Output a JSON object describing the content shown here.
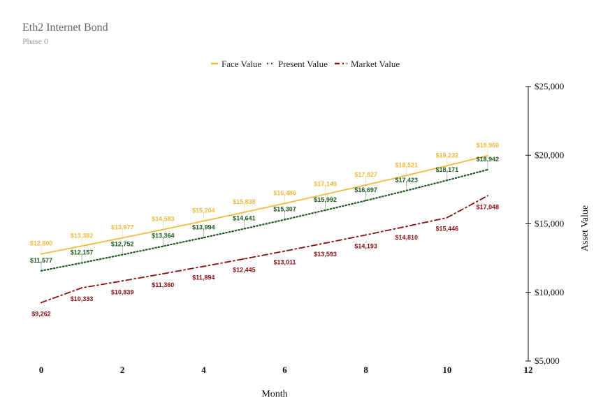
{
  "chart_data": {
    "type": "line",
    "title": "Eth2 Internet Bond",
    "subtitle": "Phase 0",
    "xlabel": "Month",
    "ylabel": "Asset Value",
    "xlim": [
      0,
      12
    ],
    "ylim": [
      5000,
      25000
    ],
    "x_ticks": [
      "0",
      "2",
      "4",
      "6",
      "8",
      "10",
      "12"
    ],
    "x_tick_values": [
      0,
      2,
      4,
      6,
      8,
      10,
      12
    ],
    "y_ticks": [
      "$5,000",
      "$10,000",
      "$15,000",
      "$20,000",
      "$25,000"
    ],
    "y_tick_values": [
      5000,
      10000,
      15000,
      20000,
      25000
    ],
    "y_axis_side": "right",
    "grid": false,
    "legend_position": "top-center",
    "x": [
      0,
      1,
      2,
      3,
      4,
      5,
      6,
      7,
      8,
      9,
      10,
      11
    ],
    "series": [
      {
        "name": "Face Value",
        "color": "#f0b93b",
        "line_style": "solid",
        "label_position": "above",
        "values": [
          12800,
          13382,
          13977,
          14583,
          15204,
          15838,
          16486,
          17149,
          17827,
          18521,
          19232,
          19960
        ],
        "labels": [
          "$12,800",
          "$13,382",
          "$13,977",
          "$14,583",
          "$15,204",
          "$15,838",
          "$16,486",
          "$17,149",
          "$17,827",
          "$18,521",
          "$19,232",
          "$19,960"
        ]
      },
      {
        "name": "Present Value",
        "color": "#1e5a1e",
        "line_style": "dotted",
        "label_position": "above",
        "values": [
          11577,
          12157,
          12752,
          13364,
          13994,
          14641,
          15307,
          15992,
          16697,
          17423,
          18171,
          18942
        ],
        "labels": [
          "$11,577",
          "$12,157",
          "$12,752",
          "$13,364",
          "$13,994",
          "$14,641",
          "$15,307",
          "$15,992",
          "$16,697",
          "$17,423",
          "$18,171",
          "$18,942"
        ]
      },
      {
        "name": "Market Value",
        "color": "#8b0e0e",
        "line_style": "dash-dot",
        "label_position": "below",
        "values": [
          9262,
          10333,
          10839,
          11360,
          11894,
          12445,
          13011,
          13593,
          14193,
          14810,
          15446,
          17048
        ],
        "labels": [
          "$9,262",
          "$10,333",
          "$10,839",
          "$11,360",
          "$11,894",
          "$12,445",
          "$13,011",
          "$13,593",
          "$14,193",
          "$14,810",
          "$15,446",
          "$17,048"
        ]
      }
    ]
  }
}
